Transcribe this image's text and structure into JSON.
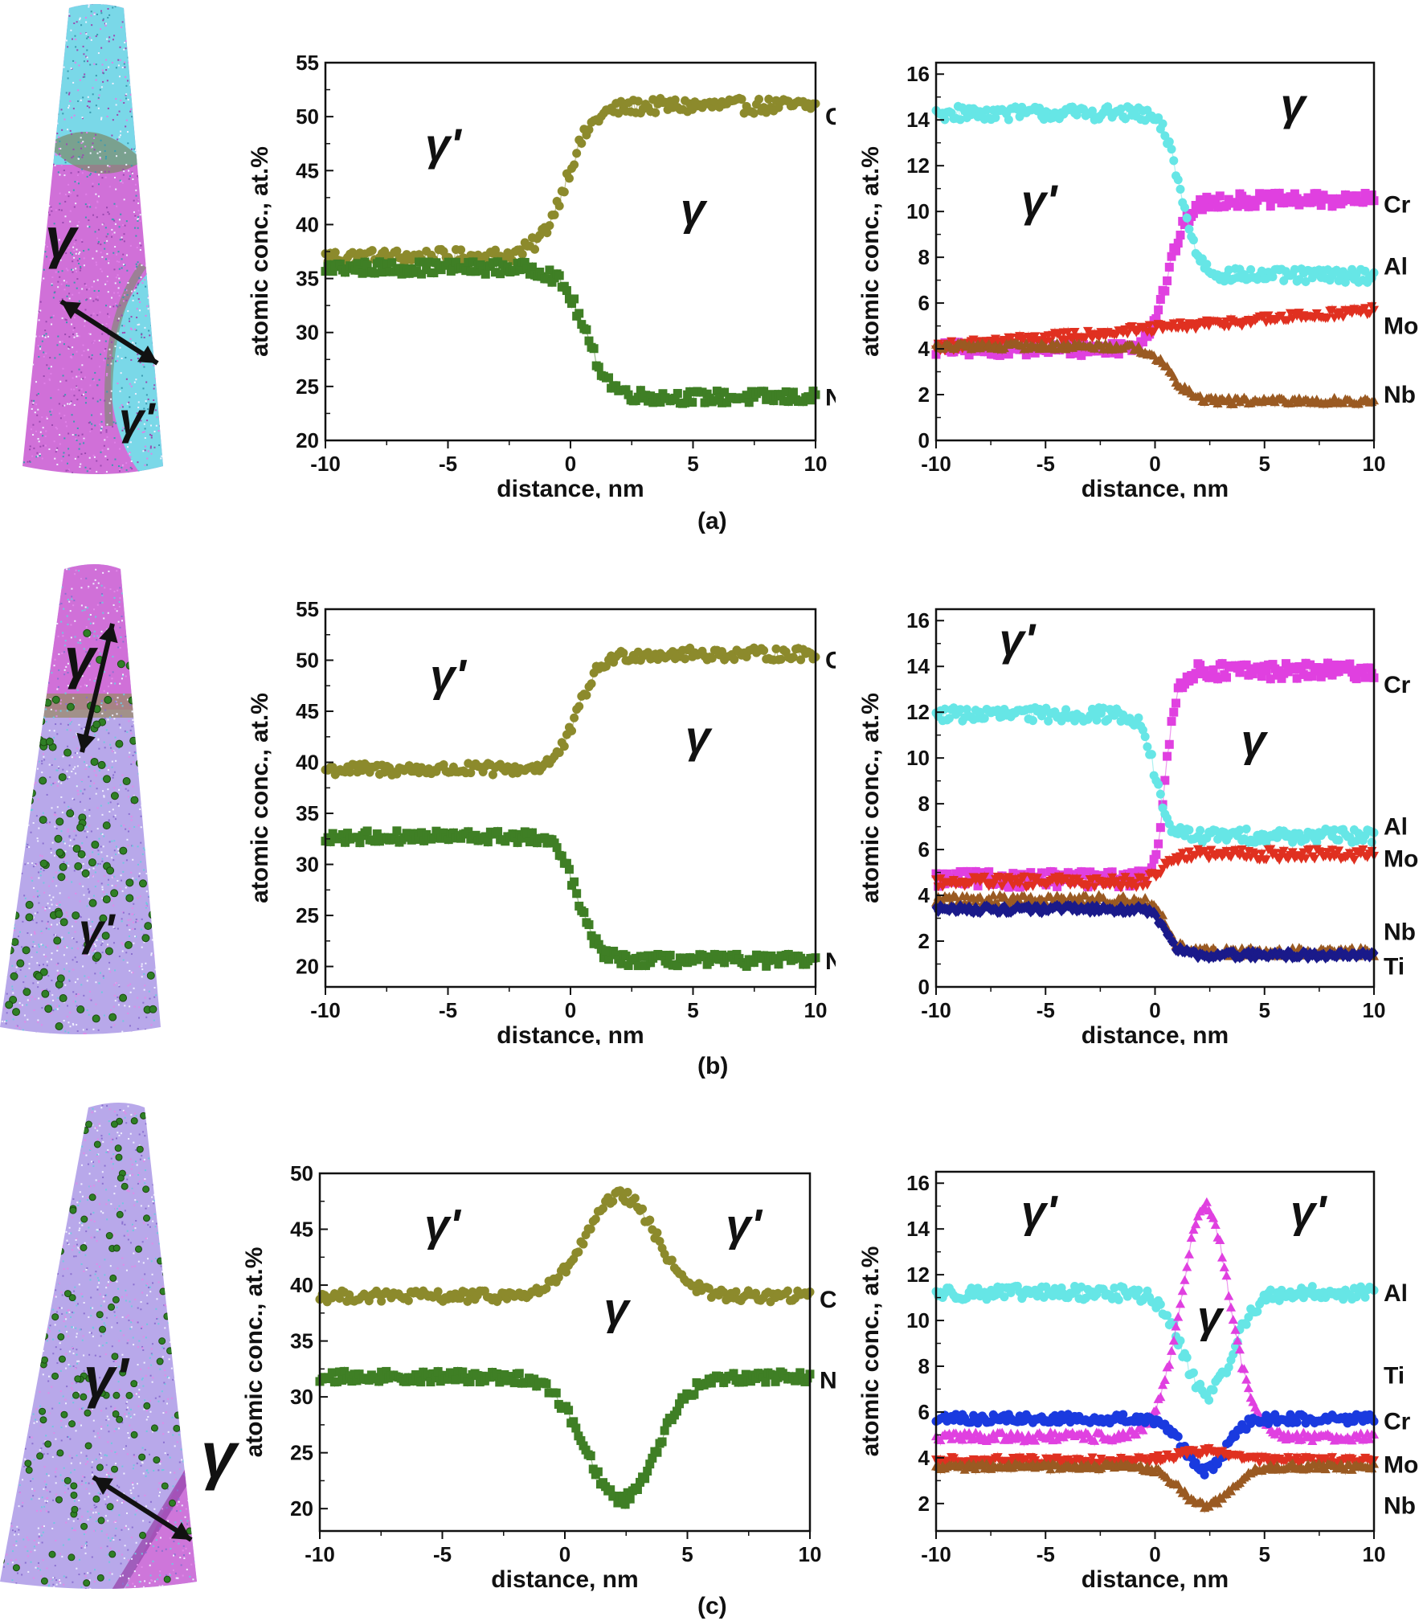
{
  "colors": {
    "Co": "#8c8a2c",
    "Ni": "#3f7f25",
    "Cr": "#e040e0",
    "Al": "#66e6e6",
    "Mo": "#e03020",
    "Nb": "#9a5a22",
    "Ti": "#1a1a8a",
    "Ti_c": "#e040e0",
    "Cr_c": "#1a3adf",
    "tip_magenta": "#d070d8",
    "tip_cyan": "#7ad8e8",
    "tip_violet": "#b8a8ea",
    "precipitate": "#2f7f25"
  },
  "panel_labels": [
    "(a)",
    "(b)",
    "(c)"
  ],
  "tips": [
    {
      "labels": [
        "γ",
        "γʹ"
      ],
      "icon": "double-arrow-icon"
    },
    {
      "labels": [
        "γ",
        "γʹ"
      ],
      "icon": "double-arrow-icon"
    },
    {
      "labels": [
        "γʹ",
        "γ"
      ],
      "icon": "double-arrow-icon"
    }
  ],
  "chart_data": [
    {
      "id": "a-left",
      "type": "scatter",
      "xlabel": "distance, nm",
      "ylabel": "atomic conc., at.%",
      "xlim": [
        -10,
        10
      ],
      "ylim": [
        20,
        55
      ],
      "xticks": [
        "-10",
        "-5",
        "0",
        "5",
        "10"
      ],
      "yticks": [
        "20",
        "25",
        "30",
        "35",
        "40",
        "45",
        "50",
        "55"
      ],
      "phase_labels": [
        {
          "text": "γʹ",
          "x": -5.2,
          "y": 46
        },
        {
          "text": "γ",
          "x": 5,
          "y": 40
        }
      ],
      "series": [
        {
          "name": "Co",
          "color_key": "Co",
          "marker": "circle",
          "profile": "step",
          "p": [
            37,
            51,
            -0.2,
            1.1
          ],
          "noise": 0.7,
          "label_y": 50
        },
        {
          "name": "Ni",
          "color_key": "Ni",
          "marker": "square",
          "profile": "step",
          "p": [
            36,
            24,
            0.6,
            1.0
          ],
          "noise": 0.6,
          "label_y": 24
        }
      ]
    },
    {
      "id": "a-right",
      "type": "scatter",
      "xlabel": "distance, nm",
      "ylabel": "atomic conc., at.%",
      "xlim": [
        -10,
        10
      ],
      "ylim": [
        0,
        16.5
      ],
      "xticks": [
        "-10",
        "-5",
        "0",
        "5",
        "10"
      ],
      "yticks": [
        "0",
        "2",
        "4",
        "6",
        "8",
        "10",
        "12",
        "14",
        "16"
      ],
      "phase_labels": [
        {
          "text": "γʹ",
          "x": -5.3,
          "y": 9.8
        },
        {
          "text": "γ",
          "x": 6.3,
          "y": 14
        }
      ],
      "series": [
        {
          "name": "Cr",
          "color_key": "Cr",
          "marker": "square",
          "profile": "step",
          "p": [
            4,
            10.5,
            0.6,
            0.9
          ],
          "noise": 0.3,
          "label_y": 10.3
        },
        {
          "name": "Al",
          "color_key": "Al",
          "marker": "circle",
          "profile": "step",
          "p": [
            14.3,
            7.2,
            1.2,
            0.8
          ],
          "noise": 0.3,
          "label_y": 7.6
        },
        {
          "name": "Mo",
          "color_key": "Mo",
          "marker": "triangle-down",
          "profile": "linear",
          "p": [
            4.1,
            5.7
          ],
          "noise": 0.2,
          "label_y": 5.0
        },
        {
          "name": "Nb",
          "color_key": "Nb",
          "marker": "triangle",
          "profile": "step",
          "p": [
            4.1,
            1.7,
            0.7,
            1.0
          ],
          "noise": 0.15,
          "label_y": 2.0
        }
      ]
    },
    {
      "id": "b-left",
      "type": "scatter",
      "xlabel": "distance, nm",
      "ylabel": "atomic conc., at.%",
      "xlim": [
        -10,
        10
      ],
      "ylim": [
        18,
        55
      ],
      "xticks": [
        "-10",
        "-5",
        "0",
        "5",
        "10"
      ],
      "yticks": [
        "20",
        "25",
        "30",
        "35",
        "40",
        "45",
        "50",
        "55"
      ],
      "phase_labels": [
        {
          "text": "γʹ",
          "x": -5,
          "y": 47
        },
        {
          "text": "γ",
          "x": 5.2,
          "y": 41
        }
      ],
      "series": [
        {
          "name": "Co",
          "color_key": "Co",
          "marker": "circle",
          "profile": "step",
          "p": [
            39.3,
            50.6,
            0.3,
            0.9
          ],
          "noise": 0.6,
          "label_y": 50
        },
        {
          "name": "Ni",
          "color_key": "Ni",
          "marker": "square",
          "profile": "step",
          "p": [
            32.7,
            20.6,
            0.3,
            0.8
          ],
          "noise": 0.6,
          "label_y": 20.5
        }
      ]
    },
    {
      "id": "b-right",
      "type": "scatter",
      "xlabel": "distance, nm",
      "ylabel": "atomic conc., at.%",
      "xlim": [
        -10,
        10
      ],
      "ylim": [
        0,
        16.5
      ],
      "xticks": [
        "-10",
        "-5",
        "0",
        "5",
        "10"
      ],
      "yticks": [
        "0",
        "2",
        "4",
        "6",
        "8",
        "10",
        "12",
        "14",
        "16"
      ],
      "phase_labels": [
        {
          "text": "γʹ",
          "x": -6.3,
          "y": 14.5
        },
        {
          "text": "γ",
          "x": 4.5,
          "y": 10.1
        }
      ],
      "series": [
        {
          "name": "Cr",
          "color_key": "Cr",
          "marker": "square",
          "profile": "step",
          "p": [
            4.7,
            13.8,
            0.5,
            0.5
          ],
          "noise": 0.35,
          "label_y": 13.2
        },
        {
          "name": "Al",
          "color_key": "Al",
          "marker": "circle",
          "profile": "step",
          "p": [
            11.9,
            6.6,
            0,
            0.6
          ],
          "noise": 0.3,
          "label_y": 7.0
        },
        {
          "name": "Mo",
          "color_key": "Mo",
          "marker": "triangle-down",
          "profile": "step",
          "p": [
            4.6,
            5.8,
            0.3,
            0.6
          ],
          "noise": 0.25,
          "label_y": 5.6
        },
        {
          "name": "Nb",
          "color_key": "Nb",
          "marker": "triangle",
          "profile": "step",
          "p": [
            3.8,
            1.5,
            0.5,
            0.6
          ],
          "noise": 0.2,
          "label_y": 2.4
        },
        {
          "name": "Ti",
          "color_key": "Ti",
          "marker": "diamond",
          "profile": "step",
          "p": [
            3.4,
            1.4,
            0.5,
            0.6
          ],
          "noise": 0.15,
          "label_y": 0.9
        }
      ]
    },
    {
      "id": "c-left",
      "type": "scatter",
      "xlabel": "distance, nm",
      "ylabel": "atomic conc., at.%",
      "xlim": [
        -10,
        10
      ],
      "ylim": [
        18,
        50
      ],
      "xticks": [
        "-10",
        "-5",
        "0",
        "5",
        "10"
      ],
      "yticks": [
        "20",
        "25",
        "30",
        "35",
        "40",
        "45",
        "50"
      ],
      "phase_labels": [
        {
          "text": "γʹ",
          "x": -5,
          "y": 44
        },
        {
          "text": "γʹ",
          "x": 7.3,
          "y": 44
        },
        {
          "text": "γ",
          "x": 2.1,
          "y": 36.5
        }
      ],
      "series": [
        {
          "name": "Co",
          "color_key": "Co",
          "marker": "circle",
          "profile": "peak",
          "p": [
            39,
            9,
            2.3,
            1.4
          ],
          "noise": 0.5,
          "label_y": 38.7
        },
        {
          "name": "Ni",
          "color_key": "Ni",
          "marker": "square",
          "profile": "peak",
          "p": [
            31.8,
            -11,
            2.3,
            1.4
          ],
          "noise": 0.5,
          "label_y": 31.5
        }
      ]
    },
    {
      "id": "c-right",
      "type": "scatter",
      "xlabel": "distance, nm",
      "ylabel": "atomic conc., at.%",
      "xlim": [
        -10,
        10
      ],
      "ylim": [
        0.8,
        16.5
      ],
      "xticks": [
        "-10",
        "-5",
        "0",
        "5",
        "10"
      ],
      "yticks": [
        "2",
        "4",
        "6",
        "8",
        "10",
        "12",
        "14",
        "16"
      ],
      "phase_labels": [
        {
          "text": "γʹ",
          "x": -5.3,
          "y": 14.1
        },
        {
          "text": "γʹ",
          "x": 7,
          "y": 14.1
        },
        {
          "text": "γ",
          "x": 2.5,
          "y": 9.5
        }
      ],
      "series": [
        {
          "name": "Al",
          "color_key": "Al",
          "marker": "circle",
          "profile": "peak",
          "p": [
            11.2,
            -4.4,
            2.4,
            1.1
          ],
          "noise": 0.3,
          "label_y": 11.2
        },
        {
          "name": "Ti",
          "color_key": "Ti_c",
          "marker": "triangle",
          "profile": "peak",
          "p": [
            4.9,
            10.1,
            2.3,
            1.1
          ],
          "noise": 0.2,
          "label_y": 7.6
        },
        {
          "name": "Cr",
          "color_key": "Cr_c",
          "marker": "circle",
          "profile": "peak",
          "p": [
            5.7,
            -2.3,
            2.3,
            0.9
          ],
          "noise": 0.2,
          "label_y": 5.6
        },
        {
          "name": "Mo",
          "color_key": "Mo",
          "marker": "triangle-down",
          "profile": "peak",
          "p": [
            3.9,
            0.4,
            2.3,
            1.2
          ],
          "noise": 0.15,
          "label_y": 3.7
        },
        {
          "name": "Nb",
          "color_key": "Nb",
          "marker": "triangle",
          "profile": "peak",
          "p": [
            3.6,
            -1.7,
            2.3,
            1.1
          ],
          "noise": 0.15,
          "label_y": 1.9
        }
      ]
    }
  ]
}
